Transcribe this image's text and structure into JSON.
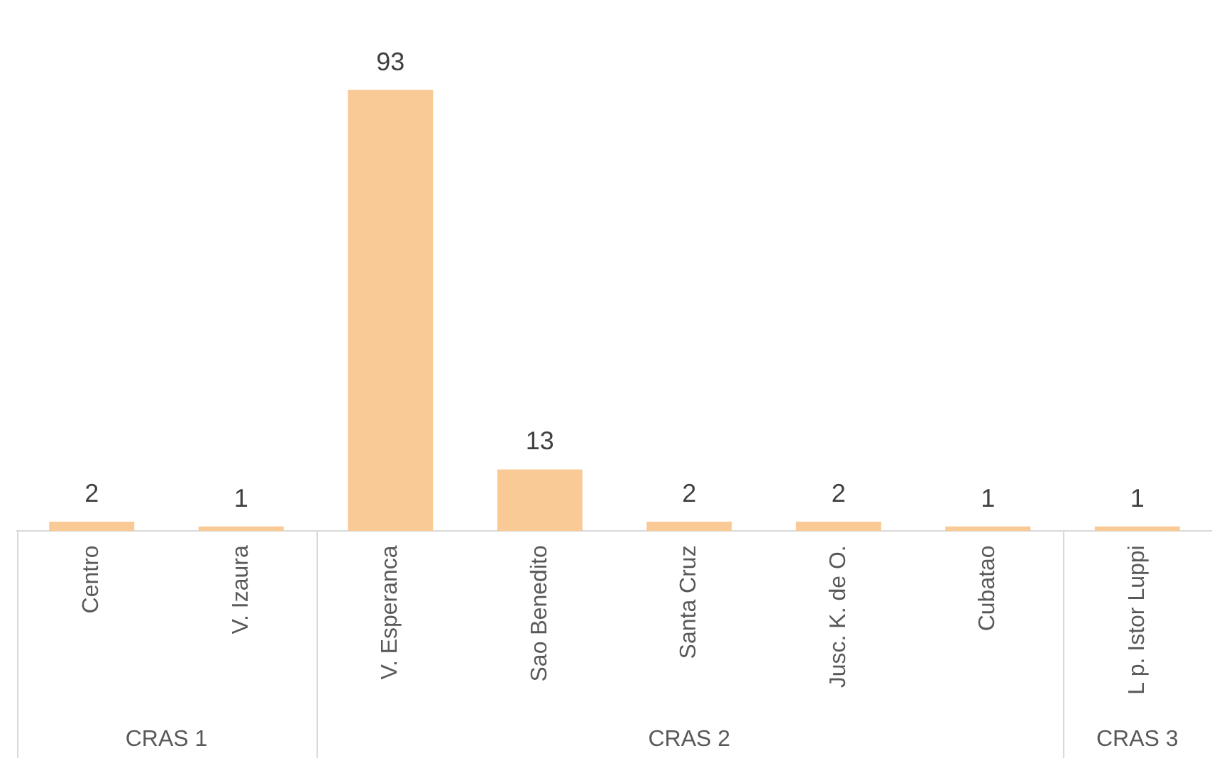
{
  "chart_data": {
    "type": "bar",
    "categories": [
      "Centro",
      "V. Izaura",
      "V. Esperanca",
      "Sao Benedito",
      "Santa Cruz",
      "Jusc. K. de O.",
      "Cubatao",
      "L p. Istor Luppi"
    ],
    "values": [
      2,
      1,
      93,
      13,
      2,
      2,
      1,
      1
    ],
    "color": "#f9c996",
    "data_labels": true,
    "grid": false,
    "legend": false,
    "tick_labels": "x",
    "annotations": [
      "CRAS 1",
      "CRAS 2",
      "CRAS 3"
    ]
  }
}
